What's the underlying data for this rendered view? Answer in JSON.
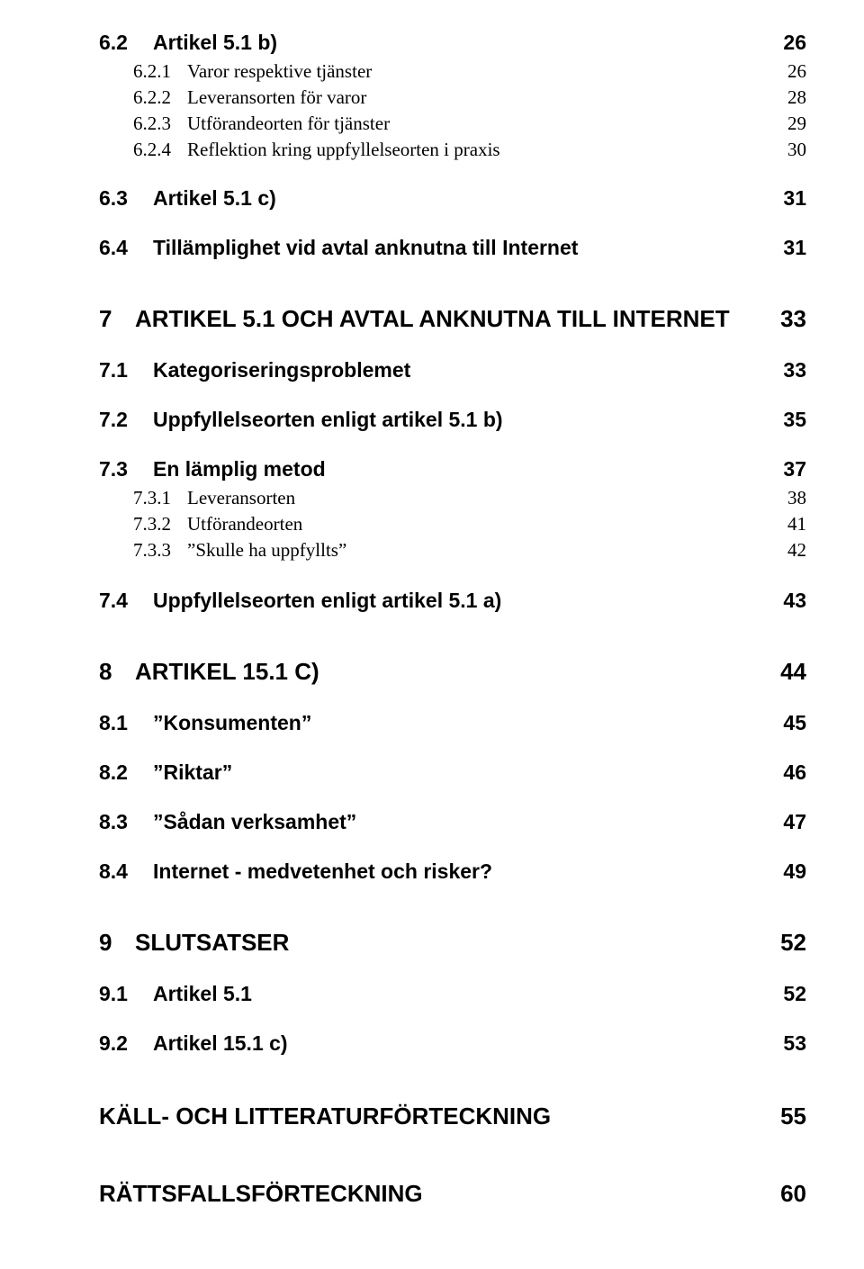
{
  "toc": [
    {
      "cls": "h2",
      "num": "6.2",
      "title": "Artikel 5.1 b)",
      "page": "26"
    },
    {
      "cls": "h3",
      "num": "6.2.1",
      "title": "Varor respektive tjänster",
      "page": "26"
    },
    {
      "cls": "h3",
      "num": "6.2.2",
      "title": "Leveransorten för varor",
      "page": "28"
    },
    {
      "cls": "h3",
      "num": "6.2.3",
      "title": "Utförandeorten för tjänster",
      "page": "29"
    },
    {
      "cls": "h3",
      "num": "6.2.4",
      "title": "Reflektion kring uppfyllelseorten i praxis",
      "page": "30"
    },
    {
      "cls": "h2-sec block-63",
      "num": "6.3",
      "title": "Artikel 5.1 c)",
      "page": "31"
    },
    {
      "cls": "h2-sec block-64",
      "num": "6.4",
      "title": "Tillämplighet vid avtal anknutna till Internet",
      "page": "31"
    },
    {
      "cls": "h1",
      "num": "7",
      "title": "ARTIKEL 5.1 OCH AVTAL ANKNUTNA TILL INTERNET",
      "page": "33"
    },
    {
      "cls": "h2-sec",
      "num": "7.1",
      "title": "Kategoriseringsproblemet",
      "page": "33"
    },
    {
      "cls": "h2-sec block-72",
      "num": "7.2",
      "title": "Uppfyllelseorten enligt artikel 5.1 b)",
      "page": "35"
    },
    {
      "cls": "h2-sec block-73",
      "num": "7.3",
      "title": "En lämplig metod",
      "page": "37"
    },
    {
      "cls": "h3",
      "num": "7.3.1",
      "title": "Leveransorten",
      "page": "38"
    },
    {
      "cls": "h3",
      "num": "7.3.2",
      "title": "Utförandeorten",
      "page": "41"
    },
    {
      "cls": "h3",
      "num": "7.3.3",
      "title": "\"Skulle ha uppfyllts\"",
      "page": "42"
    },
    {
      "cls": "h2-sec block-74",
      "num": "7.4",
      "title": "Uppfyllelseorten enligt artikel 5.1 a)",
      "page": "43"
    },
    {
      "cls": "h1",
      "num": "8",
      "title": "ARTIKEL 15.1 C)",
      "page": "44"
    },
    {
      "cls": "h2-sec",
      "num": "8.1",
      "title": "\"Konsumenten\"",
      "page": "45"
    },
    {
      "cls": "h2-sec block-82",
      "num": "8.2",
      "title": "\"Riktar\"",
      "page": "46"
    },
    {
      "cls": "h2-sec block-83",
      "num": "8.3",
      "title": "\"Sådan verksamhet\"",
      "page": "47"
    },
    {
      "cls": "h2-sec block-84",
      "num": "8.4",
      "title": "Internet - medvetenhet och risker?",
      "page": "49"
    },
    {
      "cls": "h1",
      "num": "9",
      "title": "SLUTSATSER",
      "page": "52"
    },
    {
      "cls": "h2-sec",
      "num": "9.1",
      "title": "Artikel 5.1",
      "page": "52"
    },
    {
      "cls": "h2-sec block-92",
      "num": "9.2",
      "title": "Artikel 15.1 c)",
      "page": "53"
    },
    {
      "cls": "h1-nn",
      "num": "",
      "title": "KÄLL- OCH LITTERATURFÖRTECKNING",
      "page": "55"
    },
    {
      "cls": "h1-nn last",
      "num": "",
      "title": "RÄTTSFALLSFÖRTECKNING",
      "page": "60"
    }
  ]
}
